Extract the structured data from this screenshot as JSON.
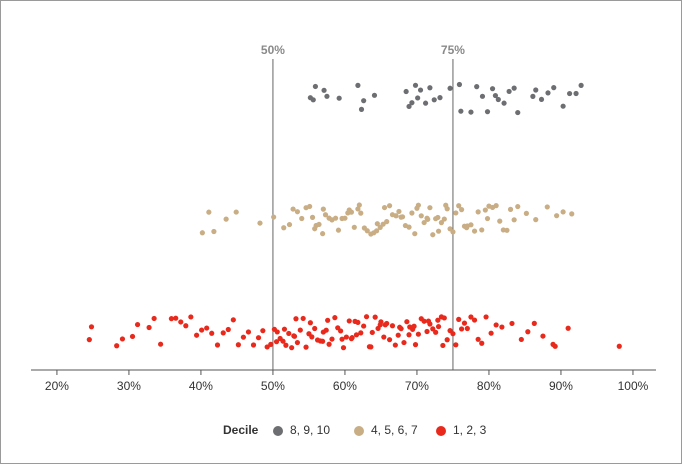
{
  "chart_data": {
    "type": "strip",
    "xlim": [
      16.4,
      103.2
    ],
    "xticks": [
      {
        "value": 20,
        "label": "20%"
      },
      {
        "value": 30,
        "label": "30%"
      },
      {
        "value": 40,
        "label": "40%"
      },
      {
        "value": 50,
        "label": "50%"
      },
      {
        "value": 60,
        "label": "60%"
      },
      {
        "value": 70,
        "label": "70%"
      },
      {
        "value": 80,
        "label": "80%"
      },
      {
        "value": 90,
        "label": "90%"
      },
      {
        "value": 100,
        "label": "100%"
      }
    ],
    "reference_lines": [
      {
        "value": 50,
        "label": "50%"
      },
      {
        "value": 75,
        "label": "75%"
      }
    ],
    "legend_title": "Decile",
    "legend": "bottom",
    "series": [
      {
        "name": "8, 9, 10",
        "color": "#6d6e71",
        "values": [
          55.2,
          55.6,
          55.9,
          57.1,
          57.5,
          59.2,
          61.8,
          62.3,
          62.6,
          64.1,
          68.5,
          68.9,
          69.3,
          69.8,
          70.1,
          70.5,
          71.2,
          71.8,
          72.4,
          73.2,
          74.6,
          75.9,
          76.1,
          77.5,
          78.3,
          79.1,
          79.8,
          80.5,
          80.9,
          81.3,
          82.1,
          82.8,
          83.5,
          84.0,
          86.1,
          86.5,
          87.3,
          88.2,
          89.0,
          90.3,
          91.2,
          92.1,
          92.8
        ]
      },
      {
        "name": "4, 5, 6, 7",
        "color": "#c9ad84",
        "values": [
          40.2,
          41.1,
          41.8,
          43.5,
          44.9,
          48.2,
          50.1,
          51.5,
          52.3,
          52.8,
          53.4,
          54.0,
          54.6,
          55.1,
          55.5,
          56.0,
          56.4,
          56.9,
          57.3,
          57.8,
          58.2,
          58.7,
          59.1,
          59.6,
          60.0,
          60.4,
          60.9,
          61.3,
          61.8,
          62.2,
          62.7,
          63.1,
          63.6,
          64.0,
          64.4,
          64.9,
          65.3,
          65.8,
          66.2,
          66.6,
          67.1,
          67.5,
          68.0,
          68.4,
          68.9,
          69.3,
          69.7,
          70.2,
          70.6,
          71.0,
          71.4,
          71.8,
          72.2,
          72.6,
          73.0,
          73.4,
          73.8,
          74.2,
          74.6,
          75.0,
          75.4,
          75.8,
          76.2,
          76.6,
          77.0,
          77.5,
          78.0,
          78.5,
          79.0,
          79.5,
          80.0,
          80.5,
          81.0,
          81.5,
          82.0,
          82.5,
          83.0,
          83.5,
          84.0,
          85.2,
          86.5,
          88.1,
          89.4,
          90.3,
          91.5,
          55.8,
          57.0,
          60.6,
          62.0,
          64.5,
          65.5,
          67.8,
          70.0,
          71.5,
          72.9,
          74.0,
          76.9,
          79.8
        ]
      },
      {
        "name": "1, 2, 3",
        "color": "#e8291c",
        "values": [
          24.5,
          24.8,
          28.3,
          29.1,
          30.5,
          31.2,
          32.8,
          33.5,
          34.4,
          35.9,
          36.5,
          37.2,
          37.9,
          38.6,
          39.4,
          40.1,
          40.8,
          41.5,
          42.3,
          43.1,
          43.8,
          44.5,
          45.2,
          45.9,
          46.6,
          47.3,
          48.0,
          48.6,
          49.2,
          49.7,
          50.2,
          50.6,
          51.0,
          51.4,
          51.8,
          52.2,
          52.6,
          53.0,
          53.4,
          53.8,
          54.2,
          54.6,
          55.0,
          55.4,
          55.8,
          56.2,
          56.6,
          57.0,
          57.4,
          57.8,
          58.2,
          58.6,
          59.0,
          59.4,
          59.8,
          60.2,
          60.6,
          61.0,
          61.4,
          61.8,
          62.2,
          62.6,
          63.0,
          63.4,
          63.8,
          64.2,
          64.6,
          65.0,
          65.4,
          65.8,
          66.2,
          66.6,
          67.0,
          67.4,
          67.8,
          68.2,
          68.6,
          69.0,
          69.4,
          69.8,
          70.2,
          70.6,
          71.0,
          71.4,
          71.8,
          72.2,
          72.6,
          73.0,
          73.4,
          73.8,
          74.2,
          74.6,
          75.0,
          75.4,
          75.8,
          76.2,
          76.6,
          77.0,
          77.5,
          78.0,
          78.5,
          79.0,
          79.6,
          80.3,
          81.0,
          81.8,
          83.2,
          84.5,
          85.4,
          86.3,
          87.5,
          88.9,
          89.2,
          91.0,
          98.1,
          50.5,
          51.6,
          53.2,
          55.2,
          57.6,
          59.6,
          61.6,
          63.6,
          65.6,
          67.6,
          69.6,
          71.6,
          73.6,
          52.9,
          56.9,
          60.9,
          64.9,
          68.9,
          72.9
        ]
      }
    ]
  }
}
